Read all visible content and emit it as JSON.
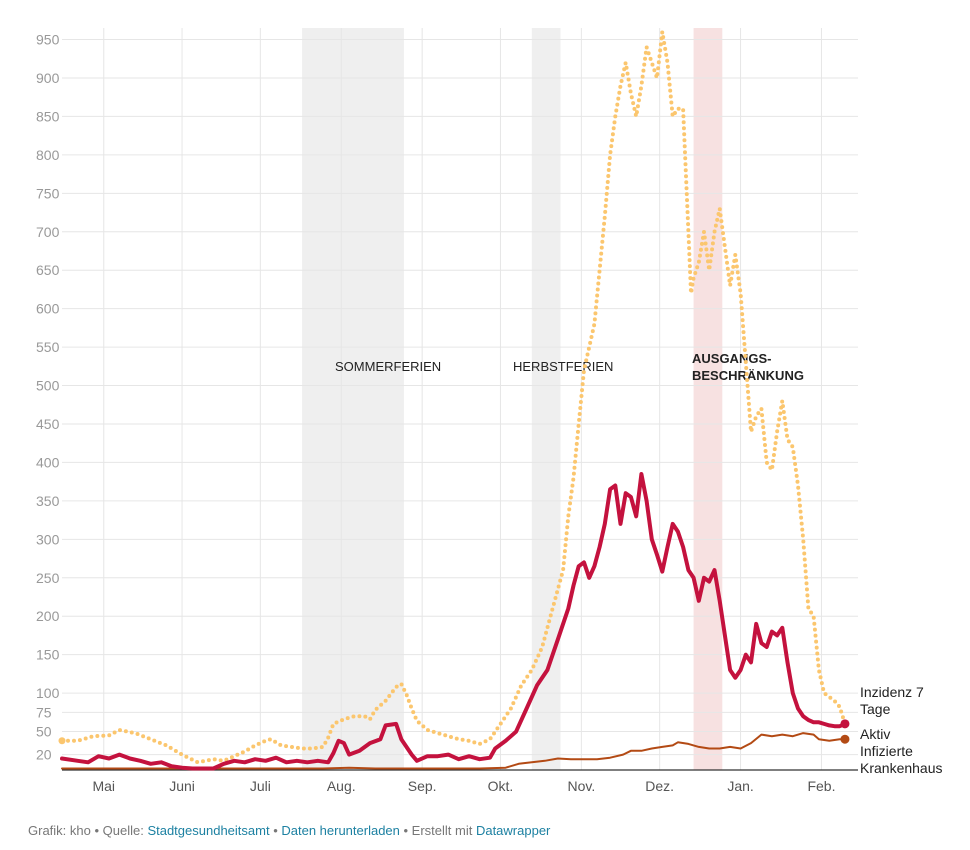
{
  "chart_data": {
    "type": "line",
    "ylim": [
      0,
      965
    ],
    "y_ticks": [
      20,
      50,
      75,
      100,
      150,
      200,
      250,
      300,
      350,
      400,
      450,
      500,
      550,
      600,
      650,
      700,
      750,
      800,
      850,
      900,
      950
    ],
    "x_month_ticks": [
      {
        "label": "Mai",
        "day": 16
      },
      {
        "label": "Juni",
        "day": 46
      },
      {
        "label": "Juli",
        "day": 76
      },
      {
        "label": "Aug.",
        "day": 107
      },
      {
        "label": "Sep.",
        "day": 138
      },
      {
        "label": "Okt.",
        "day": 168
      },
      {
        "label": "Nov.",
        "day": 199
      },
      {
        "label": "Dez.",
        "day": 229
      },
      {
        "label": "Jan.",
        "day": 260
      },
      {
        "label": "Feb.",
        "day": 291
      }
    ],
    "x_range": [
      0,
      305
    ],
    "grid": true,
    "bands": [
      {
        "label": "SOMMERFERIEN",
        "start": 92,
        "end": 131,
        "color": "#efefef",
        "bold": false
      },
      {
        "label": "HERBSTFERIEN",
        "start": 180,
        "end": 191,
        "color": "#efefef",
        "bold": false
      },
      {
        "label": "AUSGANGS-",
        "label2": "BESCHRÄNKUNG",
        "start": 242,
        "end": 253,
        "color": "#f7e1e1",
        "bold": true
      }
    ],
    "series": [
      {
        "name": "Inzidenz 7 Tage",
        "label_lines": [
          "Inzidenz 7",
          "Tage"
        ],
        "color": "#fbc66e",
        "style": "dotted",
        "points": [
          [
            0,
            38
          ],
          [
            6,
            38
          ],
          [
            12,
            44
          ],
          [
            18,
            45
          ],
          [
            22,
            52
          ],
          [
            28,
            48
          ],
          [
            34,
            40
          ],
          [
            40,
            32
          ],
          [
            46,
            20
          ],
          [
            52,
            10
          ],
          [
            58,
            14
          ],
          [
            62,
            12
          ],
          [
            66,
            18
          ],
          [
            70,
            24
          ],
          [
            74,
            32
          ],
          [
            78,
            38
          ],
          [
            80,
            40
          ],
          [
            84,
            32
          ],
          [
            88,
            30
          ],
          [
            92,
            28
          ],
          [
            96,
            28
          ],
          [
            100,
            30
          ],
          [
            102,
            42
          ],
          [
            104,
            60
          ],
          [
            108,
            66
          ],
          [
            112,
            70
          ],
          [
            116,
            70
          ],
          [
            118,
            66
          ],
          [
            120,
            78
          ],
          [
            124,
            90
          ],
          [
            128,
            108
          ],
          [
            130,
            112
          ],
          [
            132,
            98
          ],
          [
            134,
            80
          ],
          [
            136,
            64
          ],
          [
            140,
            52
          ],
          [
            144,
            48
          ],
          [
            148,
            44
          ],
          [
            152,
            40
          ],
          [
            156,
            38
          ],
          [
            160,
            34
          ],
          [
            164,
            40
          ],
          [
            168,
            60
          ],
          [
            172,
            80
          ],
          [
            176,
            110
          ],
          [
            180,
            130
          ],
          [
            184,
            160
          ],
          [
            188,
            210
          ],
          [
            192,
            260
          ],
          [
            194,
            330
          ],
          [
            196,
            380
          ],
          [
            198,
            450
          ],
          [
            200,
            520
          ],
          [
            202,
            550
          ],
          [
            204,
            580
          ],
          [
            206,
            650
          ],
          [
            208,
            720
          ],
          [
            210,
            800
          ],
          [
            212,
            850
          ],
          [
            214,
            890
          ],
          [
            216,
            920
          ],
          [
            218,
            880
          ],
          [
            220,
            850
          ],
          [
            222,
            890
          ],
          [
            224,
            940
          ],
          [
            226,
            920
          ],
          [
            228,
            900
          ],
          [
            230,
            960
          ],
          [
            232,
            920
          ],
          [
            234,
            850
          ],
          [
            236,
            860
          ],
          [
            238,
            860
          ],
          [
            240,
            700
          ],
          [
            241,
            620
          ],
          [
            242,
            640
          ],
          [
            244,
            660
          ],
          [
            246,
            700
          ],
          [
            248,
            650
          ],
          [
            250,
            700
          ],
          [
            252,
            730
          ],
          [
            254,
            680
          ],
          [
            256,
            630
          ],
          [
            258,
            670
          ],
          [
            260,
            620
          ],
          [
            262,
            530
          ],
          [
            264,
            440
          ],
          [
            266,
            460
          ],
          [
            268,
            470
          ],
          [
            270,
            400
          ],
          [
            272,
            390
          ],
          [
            274,
            440
          ],
          [
            276,
            480
          ],
          [
            278,
            430
          ],
          [
            280,
            420
          ],
          [
            282,
            370
          ],
          [
            284,
            300
          ],
          [
            286,
            210
          ],
          [
            288,
            200
          ],
          [
            290,
            130
          ],
          [
            292,
            100
          ],
          [
            294,
            95
          ],
          [
            296,
            90
          ],
          [
            298,
            82
          ],
          [
            300,
            60
          ]
        ]
      },
      {
        "name": "Aktiv Infizierte",
        "label_lines": [
          "Aktiv",
          "Infizierte"
        ],
        "color": "#c4123e",
        "style": "solid",
        "points": [
          [
            0,
            15
          ],
          [
            6,
            12
          ],
          [
            10,
            10
          ],
          [
            14,
            18
          ],
          [
            18,
            15
          ],
          [
            22,
            20
          ],
          [
            26,
            15
          ],
          [
            30,
            12
          ],
          [
            34,
            8
          ],
          [
            38,
            10
          ],
          [
            42,
            5
          ],
          [
            46,
            3
          ],
          [
            50,
            2
          ],
          [
            54,
            2
          ],
          [
            58,
            2
          ],
          [
            62,
            8
          ],
          [
            66,
            12
          ],
          [
            70,
            10
          ],
          [
            74,
            14
          ],
          [
            78,
            12
          ],
          [
            82,
            16
          ],
          [
            86,
            10
          ],
          [
            90,
            12
          ],
          [
            94,
            10
          ],
          [
            98,
            12
          ],
          [
            102,
            10
          ],
          [
            104,
            22
          ],
          [
            106,
            38
          ],
          [
            108,
            35
          ],
          [
            110,
            20
          ],
          [
            114,
            25
          ],
          [
            118,
            35
          ],
          [
            122,
            40
          ],
          [
            124,
            58
          ],
          [
            128,
            60
          ],
          [
            130,
            40
          ],
          [
            134,
            20
          ],
          [
            136,
            12
          ],
          [
            140,
            18
          ],
          [
            144,
            18
          ],
          [
            148,
            20
          ],
          [
            152,
            14
          ],
          [
            156,
            18
          ],
          [
            160,
            14
          ],
          [
            164,
            16
          ],
          [
            166,
            28
          ],
          [
            170,
            38
          ],
          [
            174,
            50
          ],
          [
            178,
            80
          ],
          [
            182,
            110
          ],
          [
            186,
            130
          ],
          [
            190,
            170
          ],
          [
            194,
            210
          ],
          [
            196,
            240
          ],
          [
            198,
            265
          ],
          [
            200,
            270
          ],
          [
            202,
            250
          ],
          [
            204,
            265
          ],
          [
            206,
            290
          ],
          [
            208,
            320
          ],
          [
            210,
            365
          ],
          [
            212,
            370
          ],
          [
            214,
            320
          ],
          [
            216,
            360
          ],
          [
            218,
            355
          ],
          [
            220,
            330
          ],
          [
            222,
            385
          ],
          [
            224,
            350
          ],
          [
            226,
            300
          ],
          [
            228,
            280
          ],
          [
            230,
            258
          ],
          [
            232,
            290
          ],
          [
            234,
            320
          ],
          [
            236,
            310
          ],
          [
            238,
            290
          ],
          [
            240,
            260
          ],
          [
            242,
            250
          ],
          [
            244,
            220
          ],
          [
            246,
            250
          ],
          [
            248,
            245
          ],
          [
            250,
            260
          ],
          [
            252,
            220
          ],
          [
            254,
            175
          ],
          [
            256,
            130
          ],
          [
            258,
            120
          ],
          [
            260,
            130
          ],
          [
            262,
            150
          ],
          [
            264,
            140
          ],
          [
            266,
            190
          ],
          [
            268,
            165
          ],
          [
            270,
            160
          ],
          [
            272,
            180
          ],
          [
            274,
            175
          ],
          [
            276,
            185
          ],
          [
            278,
            140
          ],
          [
            280,
            100
          ],
          [
            282,
            80
          ],
          [
            284,
            70
          ],
          [
            286,
            65
          ],
          [
            288,
            62
          ],
          [
            290,
            62
          ],
          [
            292,
            60
          ],
          [
            294,
            58
          ],
          [
            296,
            57
          ],
          [
            298,
            57
          ],
          [
            300,
            60
          ]
        ]
      },
      {
        "name": "Krankenhaus",
        "label_lines": [
          "Krankenhaus"
        ],
        "color": "#b34a14",
        "style": "solid",
        "points": [
          [
            0,
            2
          ],
          [
            10,
            2
          ],
          [
            20,
            2
          ],
          [
            30,
            2
          ],
          [
            40,
            2
          ],
          [
            50,
            2
          ],
          [
            60,
            2
          ],
          [
            70,
            2
          ],
          [
            80,
            2
          ],
          [
            90,
            2
          ],
          [
            100,
            2
          ],
          [
            110,
            3
          ],
          [
            120,
            2
          ],
          [
            130,
            2
          ],
          [
            140,
            2
          ],
          [
            150,
            2
          ],
          [
            160,
            2
          ],
          [
            170,
            3
          ],
          [
            175,
            8
          ],
          [
            180,
            10
          ],
          [
            185,
            12
          ],
          [
            190,
            15
          ],
          [
            195,
            14
          ],
          [
            200,
            14
          ],
          [
            205,
            14
          ],
          [
            210,
            16
          ],
          [
            215,
            20
          ],
          [
            218,
            25
          ],
          [
            222,
            25
          ],
          [
            226,
            28
          ],
          [
            230,
            30
          ],
          [
            234,
            32
          ],
          [
            236,
            36
          ],
          [
            240,
            34
          ],
          [
            244,
            30
          ],
          [
            248,
            28
          ],
          [
            252,
            28
          ],
          [
            256,
            30
          ],
          [
            260,
            28
          ],
          [
            264,
            35
          ],
          [
            268,
            46
          ],
          [
            272,
            44
          ],
          [
            276,
            46
          ],
          [
            280,
            44
          ],
          [
            284,
            48
          ],
          [
            288,
            46
          ],
          [
            290,
            40
          ],
          [
            294,
            38
          ],
          [
            298,
            40
          ],
          [
            300,
            40
          ]
        ]
      }
    ]
  },
  "footer": {
    "prefix": "Grafik: kho • Quelle: ",
    "source_link": "Stadtgesundheitsamt",
    "sep1": " • ",
    "download_link": "Daten herunterladen",
    "sep2": " • Erstellt mit ",
    "tool_link": "Datawrapper"
  }
}
